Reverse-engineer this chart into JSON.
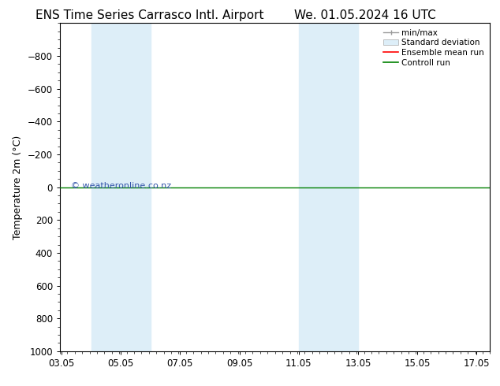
{
  "title_left": "ENS Time Series Carrasco Intl. Airport",
  "title_right": "We. 01.05.2024 16 UTC",
  "ylabel": "Temperature 2m (°C)",
  "watermark": "© weatheronline.co.nz",
  "xlim": [
    3.0,
    17.5
  ],
  "ylim": [
    1000,
    -1000
  ],
  "yticks": [
    -800,
    -600,
    -400,
    -200,
    0,
    200,
    400,
    600,
    800,
    1000
  ],
  "xticks": [
    3.05,
    5.05,
    7.05,
    9.05,
    11.05,
    13.05,
    15.05,
    17.05
  ],
  "xticklabels": [
    "03.05",
    "05.05",
    "07.05",
    "09.05",
    "11.05",
    "13.05",
    "15.05",
    "17.05"
  ],
  "shaded_regions": [
    [
      4.05,
      5.05
    ],
    [
      5.05,
      6.05
    ],
    [
      11.05,
      12.05
    ],
    [
      12.05,
      13.05
    ]
  ],
  "shade_color": "#ddeef8",
  "control_run_y": 0,
  "control_run_color": "#008000",
  "ensemble_mean_color": "#ff0000",
  "bg_color": "#ffffff",
  "legend_entries": [
    "min/max",
    "Standard deviation",
    "Ensemble mean run",
    "Controll run"
  ],
  "title_fontsize": 11,
  "tick_fontsize": 8.5,
  "ylabel_fontsize": 9,
  "watermark_color": "#3355aa",
  "watermark_fontsize": 8
}
